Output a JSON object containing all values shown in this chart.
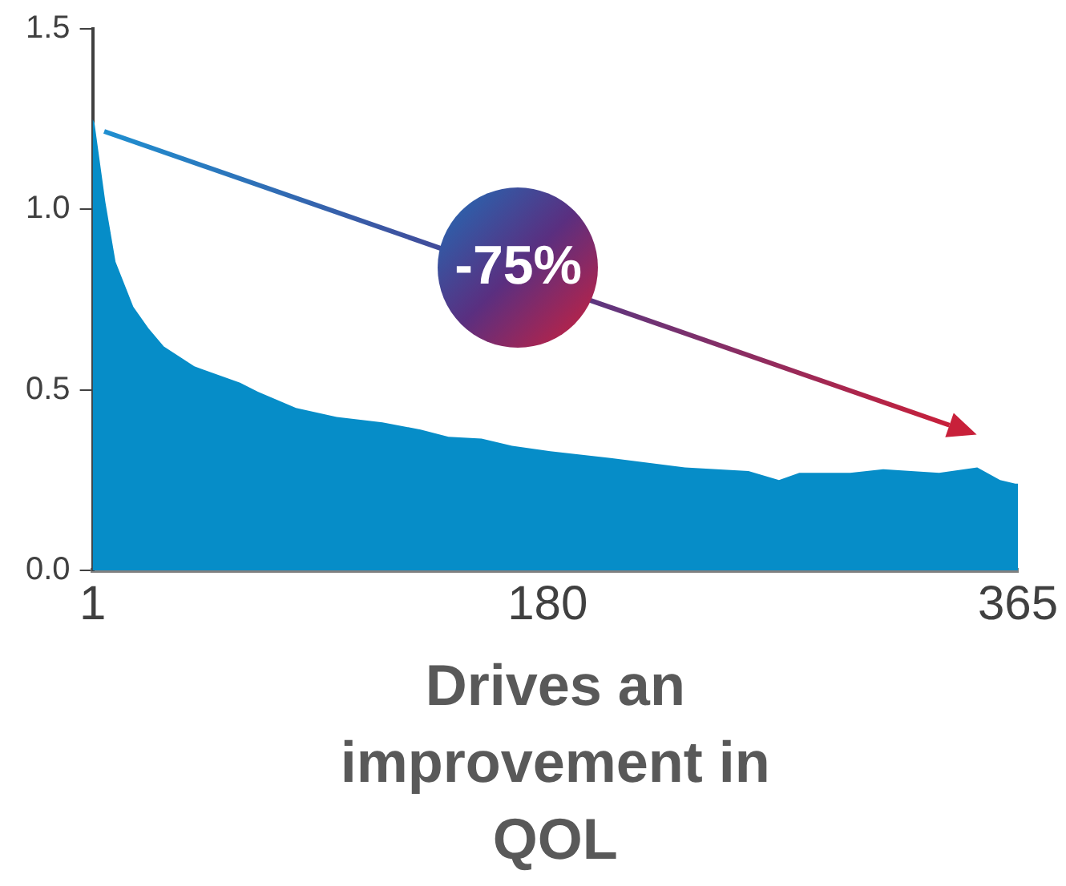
{
  "chart_data": {
    "type": "area",
    "xlabel": "Drives an improvement in QOL",
    "annotations": [
      "-75%"
    ],
    "x": [
      1,
      1.7,
      6,
      10,
      17,
      23,
      29,
      41,
      59,
      66,
      81,
      97,
      115,
      130,
      141,
      154,
      166,
      181,
      206,
      234,
      259,
      271,
      279,
      299,
      312,
      334,
      349,
      358,
      364,
      365
    ],
    "series": [
      {
        "color": "#068dc8",
        "values": [
          1.25,
          1.24,
          1.02,
          0.855,
          0.73,
          0.67,
          0.62,
          0.565,
          0.52,
          0.495,
          0.45,
          0.425,
          0.41,
          0.39,
          0.37,
          0.365,
          0.345,
          0.33,
          0.31,
          0.285,
          0.275,
          0.25,
          0.27,
          0.27,
          0.28,
          0.27,
          0.285,
          0.25,
          0.24,
          0.24
        ]
      }
    ],
    "xlim": [
      1,
      365
    ],
    "xticks": [
      1,
      180,
      365
    ],
    "ylim": [
      0,
      1.5
    ],
    "yticks": [
      {
        "value": 0,
        "label": "0.0"
      },
      {
        "value": 0.5,
        "label": "0.5"
      },
      {
        "value": 1,
        "label": "1.0"
      },
      {
        "value": 1.5,
        "label": "1.5"
      }
    ],
    "grid": false,
    "legend": false
  }
}
